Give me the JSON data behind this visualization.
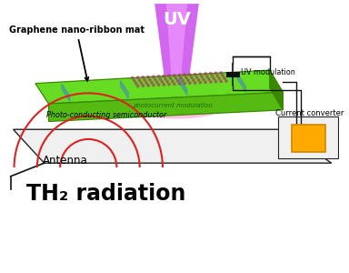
{
  "bg_color": "#ffffff",
  "uv_label": "UV",
  "graphene_label": "Graphene nano-ribbon mat",
  "photo_label": "Photo-conducting semiconductor",
  "photocurrent_label": "photocurrent modulation",
  "uv_mod_label": "UV modulation",
  "current_conv_label": "Current converter",
  "antenna_label": "Antenna",
  "thz_label": "TH₂ radiation",
  "green_bright": "#66dd22",
  "green_mid": "#55bb11",
  "green_dark": "#3a8800",
  "pink_glow": "#ff99cc",
  "uv_beam_outer": "#cc55ee",
  "uv_beam_inner": "#ee99ff",
  "gold_color": "#ffaa00",
  "gold_edge": "#cc8800",
  "red_arc_color": "#dd2222",
  "blue_ribbon": "#4488bb",
  "dot_color": "#aa3366",
  "platform_face": "#f0f0f0",
  "platform_edge": "#222222",
  "wire_color": "#111111",
  "cap_color": "#111111"
}
